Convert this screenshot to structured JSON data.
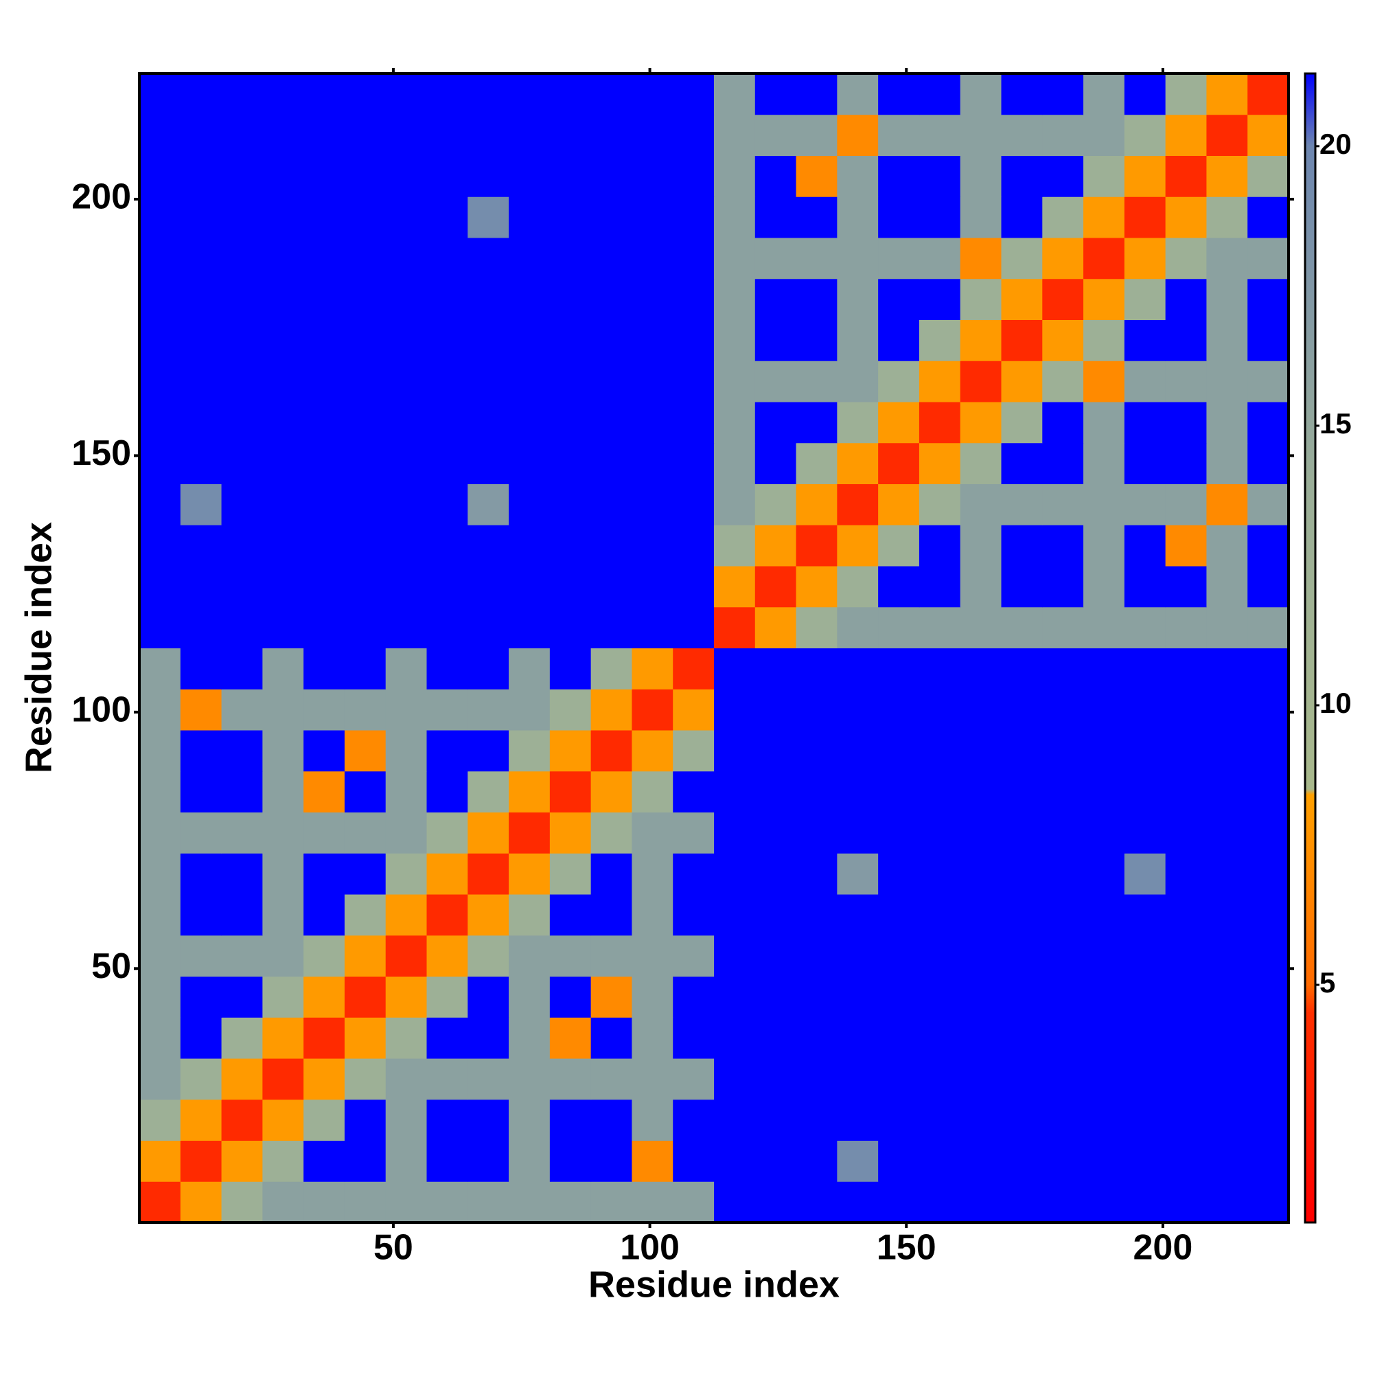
{
  "chart_data": {
    "type": "heatmap",
    "x_label": "Residue index",
    "y_label": "Residue index",
    "bins": [
      0.5,
      8.5,
      16.5,
      24.5,
      32.5,
      40.5,
      48.5,
      56.5,
      64.5,
      72.5,
      80.5,
      88.5,
      96.5,
      104.5,
      112.5,
      120.5,
      128.5,
      136.5,
      144.5,
      152.5,
      160.5,
      168.5,
      176.5,
      184.5,
      192.5,
      200.5,
      208.5,
      216.5,
      224.5
    ],
    "xlim": [
      0.5,
      224.5
    ],
    "ylim": [
      0.5,
      224.5
    ],
    "xticks": [
      50,
      100,
      150,
      200
    ],
    "yticks": [
      50,
      100,
      150,
      200
    ],
    "clim": [
      0.75,
      21.3
    ],
    "cticks": [
      5,
      10,
      15,
      20
    ],
    "colorscale": [
      [
        0.75,
        "#ff0000"
      ],
      [
        4.5,
        "#ff3000"
      ],
      [
        5,
        "#ff6a00"
      ],
      [
        8.4,
        "#ffa000"
      ],
      [
        8.5,
        "#a8b88c"
      ],
      [
        14,
        "#9aae98"
      ],
      [
        20,
        "#6d86b0"
      ],
      [
        21.3,
        "#0000ff"
      ]
    ],
    "values": [
      [
        4,
        8,
        13,
        16,
        16,
        16,
        16,
        16,
        16,
        16,
        16,
        16,
        16,
        16,
        22,
        22,
        22,
        22,
        22,
        22,
        22,
        22,
        22,
        22,
        22,
        22,
        22,
        22
      ],
      [
        8,
        4,
        8,
        13,
        22,
        22,
        16,
        22,
        22,
        16,
        22,
        22,
        7,
        22,
        22,
        22,
        22,
        19,
        22,
        22,
        22,
        22,
        22,
        22,
        22,
        22,
        22,
        22
      ],
      [
        13,
        8,
        4,
        8,
        13,
        22,
        16,
        22,
        22,
        16,
        22,
        22,
        16,
        22,
        22,
        22,
        22,
        22,
        22,
        22,
        22,
        22,
        22,
        22,
        22,
        22,
        22,
        22
      ],
      [
        16,
        13,
        8,
        4,
        8,
        13,
        16,
        16,
        16,
        16,
        16,
        16,
        16,
        16,
        22,
        22,
        22,
        22,
        22,
        22,
        22,
        22,
        22,
        22,
        22,
        22,
        22,
        22
      ],
      [
        16,
        22,
        13,
        8,
        4,
        8,
        13,
        22,
        22,
        16,
        7,
        22,
        16,
        22,
        22,
        22,
        22,
        22,
        22,
        22,
        22,
        22,
        22,
        22,
        22,
        22,
        22,
        22
      ],
      [
        16,
        22,
        22,
        13,
        8,
        4,
        8,
        13,
        22,
        16,
        22,
        7,
        16,
        22,
        22,
        22,
        22,
        22,
        22,
        22,
        22,
        22,
        22,
        22,
        22,
        22,
        22,
        22
      ],
      [
        16,
        16,
        16,
        16,
        13,
        8,
        4,
        8,
        13,
        16,
        16,
        16,
        16,
        16,
        22,
        22,
        22,
        22,
        22,
        22,
        22,
        22,
        22,
        22,
        22,
        22,
        22,
        22
      ],
      [
        16,
        22,
        22,
        16,
        22,
        13,
        8,
        4,
        8,
        13,
        22,
        22,
        16,
        22,
        22,
        22,
        22,
        22,
        22,
        22,
        22,
        22,
        22,
        22,
        22,
        22,
        22,
        22
      ],
      [
        16,
        22,
        22,
        16,
        22,
        22,
        13,
        8,
        4,
        8,
        13,
        22,
        16,
        22,
        22,
        22,
        22,
        17,
        22,
        22,
        22,
        22,
        22,
        22,
        19,
        22,
        22,
        22
      ],
      [
        16,
        16,
        16,
        16,
        16,
        16,
        16,
        13,
        8,
        4,
        8,
        13,
        16,
        16,
        22,
        22,
        22,
        22,
        22,
        22,
        22,
        22,
        22,
        22,
        22,
        22,
        22,
        22
      ],
      [
        16,
        22,
        22,
        16,
        7,
        22,
        16,
        22,
        13,
        8,
        4,
        8,
        13,
        22,
        22,
        22,
        22,
        22,
        22,
        22,
        22,
        22,
        22,
        22,
        22,
        22,
        22,
        22
      ],
      [
        16,
        22,
        22,
        16,
        22,
        7,
        16,
        22,
        22,
        13,
        8,
        4,
        8,
        13,
        22,
        22,
        22,
        22,
        22,
        22,
        22,
        22,
        22,
        22,
        22,
        22,
        22,
        22
      ],
      [
        16,
        7,
        16,
        16,
        16,
        16,
        16,
        16,
        16,
        16,
        13,
        8,
        4,
        8,
        22,
        22,
        22,
        22,
        22,
        22,
        22,
        22,
        22,
        22,
        22,
        22,
        22,
        22
      ],
      [
        16,
        22,
        22,
        16,
        22,
        22,
        16,
        22,
        22,
        16,
        22,
        13,
        8,
        4,
        22,
        22,
        22,
        22,
        22,
        22,
        22,
        22,
        22,
        22,
        22,
        22,
        22,
        22
      ],
      [
        22,
        22,
        22,
        22,
        22,
        22,
        22,
        22,
        22,
        22,
        22,
        22,
        22,
        22,
        4,
        8,
        13,
        16,
        16,
        16,
        16,
        16,
        16,
        16,
        16,
        16,
        16,
        16
      ],
      [
        22,
        22,
        22,
        22,
        22,
        22,
        22,
        22,
        22,
        22,
        22,
        22,
        22,
        22,
        8,
        4,
        8,
        13,
        22,
        22,
        16,
        22,
        22,
        16,
        22,
        22,
        16,
        22
      ],
      [
        22,
        22,
        22,
        22,
        22,
        22,
        22,
        22,
        22,
        22,
        22,
        22,
        22,
        22,
        13,
        8,
        4,
        8,
        13,
        22,
        16,
        22,
        22,
        16,
        22,
        7,
        16,
        22
      ],
      [
        22,
        19,
        22,
        22,
        22,
        22,
        22,
        22,
        17,
        22,
        22,
        22,
        22,
        22,
        16,
        13,
        8,
        4,
        8,
        13,
        16,
        16,
        16,
        16,
        16,
        16,
        7,
        16
      ],
      [
        22,
        22,
        22,
        22,
        22,
        22,
        22,
        22,
        22,
        22,
        22,
        22,
        22,
        22,
        16,
        22,
        13,
        8,
        4,
        8,
        13,
        22,
        22,
        16,
        22,
        22,
        16,
        22
      ],
      [
        22,
        22,
        22,
        22,
        22,
        22,
        22,
        22,
        22,
        22,
        22,
        22,
        22,
        22,
        16,
        22,
        22,
        13,
        8,
        4,
        8,
        13,
        22,
        16,
        22,
        22,
        16,
        22
      ],
      [
        22,
        22,
        22,
        22,
        22,
        22,
        22,
        22,
        22,
        22,
        22,
        22,
        22,
        22,
        16,
        16,
        16,
        16,
        13,
        8,
        4,
        8,
        13,
        7,
        16,
        16,
        16,
        16
      ],
      [
        22,
        22,
        22,
        22,
        22,
        22,
        22,
        22,
        22,
        22,
        22,
        22,
        22,
        22,
        16,
        22,
        22,
        16,
        22,
        13,
        8,
        4,
        8,
        13,
        22,
        22,
        16,
        22
      ],
      [
        22,
        22,
        22,
        22,
        22,
        22,
        22,
        22,
        22,
        22,
        22,
        22,
        22,
        22,
        16,
        22,
        22,
        16,
        22,
        22,
        13,
        8,
        4,
        8,
        13,
        22,
        16,
        22
      ],
      [
        22,
        22,
        22,
        22,
        22,
        22,
        22,
        22,
        22,
        22,
        22,
        22,
        22,
        22,
        16,
        16,
        16,
        16,
        16,
        16,
        7,
        13,
        8,
        4,
        8,
        13,
        16,
        16
      ],
      [
        22,
        22,
        22,
        22,
        22,
        22,
        22,
        22,
        19,
        22,
        22,
        22,
        22,
        22,
        16,
        22,
        22,
        16,
        22,
        22,
        16,
        22,
        13,
        8,
        4,
        8,
        13,
        22
      ],
      [
        22,
        22,
        22,
        22,
        22,
        22,
        22,
        22,
        22,
        22,
        22,
        22,
        22,
        22,
        16,
        22,
        7,
        16,
        22,
        22,
        16,
        22,
        22,
        13,
        8,
        4,
        8,
        13
      ],
      [
        22,
        22,
        22,
        22,
        22,
        22,
        22,
        22,
        22,
        22,
        22,
        22,
        22,
        22,
        16,
        16,
        16,
        7,
        16,
        16,
        16,
        16,
        16,
        16,
        13,
        8,
        4,
        8
      ],
      [
        22,
        22,
        22,
        22,
        22,
        22,
        22,
        22,
        22,
        22,
        22,
        22,
        22,
        22,
        16,
        22,
        22,
        16,
        22,
        22,
        16,
        22,
        22,
        16,
        22,
        13,
        8,
        4
      ]
    ]
  }
}
